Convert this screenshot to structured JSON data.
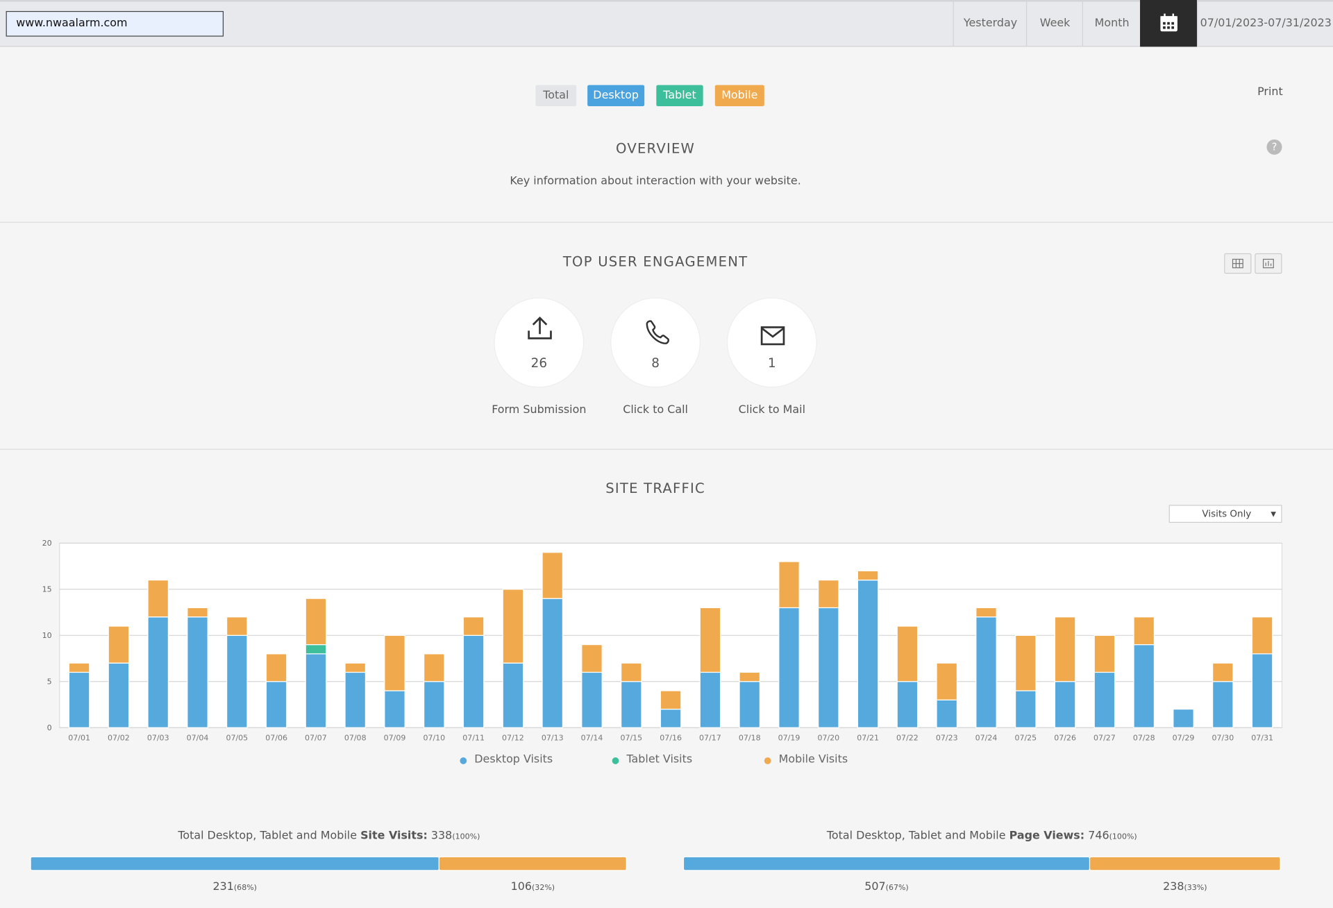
{
  "header": {
    "url": "www.nwaalarm.com",
    "ranges": [
      "Yesterday",
      "Week",
      "Month"
    ],
    "date_range": "07/01/2023-07/31/2023"
  },
  "filters": [
    "Total",
    "Desktop",
    "Tablet",
    "Mobile"
  ],
  "print": "Print",
  "overview": {
    "title": "OVERVIEW",
    "subtitle": "Key information about interaction with your website.",
    "help": "?"
  },
  "engagement": {
    "title": "TOP USER ENGAGEMENT",
    "items": [
      {
        "value": 26,
        "label": "Form Submission"
      },
      {
        "value": 8,
        "label": "Click to Call"
      },
      {
        "value": 1,
        "label": "Click to Mail"
      }
    ]
  },
  "site_traffic": {
    "title": "SITE TRAFFIC",
    "dropdown": "Visits Only"
  },
  "chart_data": {
    "type": "bar",
    "stacked": true,
    "grid": true,
    "categories": [
      "07/01",
      "07/02",
      "07/03",
      "07/04",
      "07/05",
      "07/06",
      "07/07",
      "07/08",
      "07/09",
      "07/10",
      "07/11",
      "07/12",
      "07/13",
      "07/14",
      "07/15",
      "07/16",
      "07/17",
      "07/18",
      "07/19",
      "07/20",
      "07/21",
      "07/22",
      "07/23",
      "07/24",
      "07/25",
      "07/26",
      "07/27",
      "07/28",
      "07/29",
      "07/30",
      "07/31"
    ],
    "series": [
      {
        "name": "Desktop Visits",
        "color": "#55a9dc",
        "values": [
          6,
          7,
          12,
          12,
          10,
          5,
          8,
          6,
          4,
          5,
          10,
          7,
          14,
          6,
          5,
          2,
          6,
          5,
          13,
          13,
          16,
          5,
          3,
          12,
          4,
          5,
          6,
          9,
          2,
          5,
          8
        ]
      },
      {
        "name": "Tablet Visits",
        "color": "#3dbf9b",
        "values": [
          0,
          0,
          0,
          0,
          0,
          0,
          1,
          0,
          0,
          0,
          0,
          0,
          0,
          0,
          0,
          0,
          0,
          0,
          0,
          0,
          0,
          0,
          0,
          0,
          0,
          0,
          0,
          0,
          0,
          0,
          0
        ]
      },
      {
        "name": "Mobile Visits",
        "color": "#f0a94c",
        "values": [
          1,
          4,
          4,
          1,
          2,
          3,
          5,
          1,
          6,
          3,
          2,
          8,
          5,
          3,
          2,
          2,
          7,
          1,
          5,
          3,
          1,
          6,
          4,
          1,
          6,
          7,
          4,
          3,
          0,
          2,
          4
        ]
      }
    ],
    "ylim": [
      0,
      20
    ],
    "yticks": [
      0,
      5,
      10,
      15,
      20
    ]
  },
  "summaries": [
    {
      "prefix": "Total Desktop, Tablet and Mobile",
      "metric": "Site Visits:",
      "total": 338,
      "total_label": "(100%)",
      "parts": [
        {
          "value": 231,
          "label": "(68%)",
          "color": "#55a9dc"
        },
        {
          "value": 106,
          "label": "(32%)",
          "color": "#f0a94c"
        }
      ]
    },
    {
      "prefix": "Total Desktop, Tablet and Mobile",
      "metric": "Page Views:",
      "total": 746,
      "total_label": "(100%)",
      "parts": [
        {
          "value": 507,
          "label": "(67%)",
          "color": "#55a9dc"
        },
        {
          "value": 238,
          "label": "(33%)",
          "color": "#f0a94c"
        }
      ]
    }
  ]
}
